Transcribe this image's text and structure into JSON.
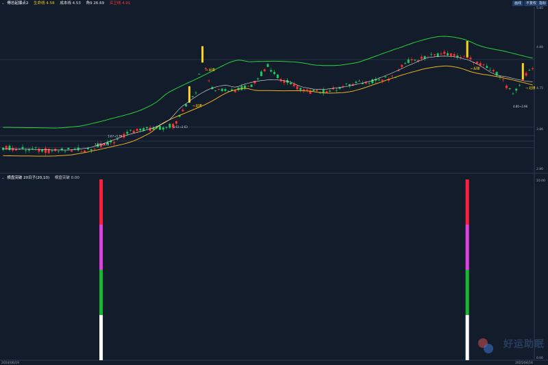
{
  "header_top": {
    "chevron": "chevron-down-icon",
    "title": "傅总起爆点2",
    "items": [
      {
        "label": "生命线",
        "value": "4.58",
        "color": "#f5c518"
      },
      {
        "label": "成本线",
        "value": "4.53",
        "color": "#e8e8e8"
      },
      {
        "label": "角9",
        "value": "26.69",
        "color": "#e8e8e8"
      },
      {
        "label": "买卫线",
        "value": "4.91",
        "color": "#ff3b3b"
      }
    ],
    "buttons": [
      "画线",
      "不复权",
      "指标"
    ]
  },
  "header_bottom": {
    "title": "横盘突破 20日子(20,10)",
    "item_label": "横盘突破",
    "item_value": "0.00"
  },
  "price_axis": {
    "labels": [
      "5.85",
      "4.88",
      "4.75",
      "3.86",
      "2.80"
    ]
  },
  "indicator_axis": {
    "labels": [
      "10.00",
      "0.00"
    ]
  },
  "dates": {
    "start": "2024/06/19",
    "end": "2025/04/16"
  },
  "annotations": {
    "signal_label": "→ 起爆",
    "price_tags": [
      "3.63→3.70",
      "3.67→3.79",
      "3.61→3.63",
      "4.80→3.96"
    ]
  },
  "chart_data": {
    "type": "candlestick",
    "title": "",
    "ylim": [
      2.8,
      5.85
    ],
    "colors": {
      "up": "#ff2d2d",
      "down": "#19c95a",
      "upper_band": "#28d23a",
      "lower_band": "#f0b020",
      "cost_line": "#e8e8e8"
    },
    "indicator": {
      "name": "横盘突破",
      "ylim": [
        0,
        10
      ],
      "bars": [
        {
          "index": 30,
          "value": 10,
          "segments": [
            "#ffffff",
            "#18b832",
            "#e040e0",
            "#ff1e3c"
          ]
        },
        {
          "index": 142,
          "value": 10,
          "segments": [
            "#ffffff",
            "#18b832",
            "#e040e0",
            "#ff1e3c"
          ]
        }
      ]
    }
  },
  "watermark": "好运助眠"
}
